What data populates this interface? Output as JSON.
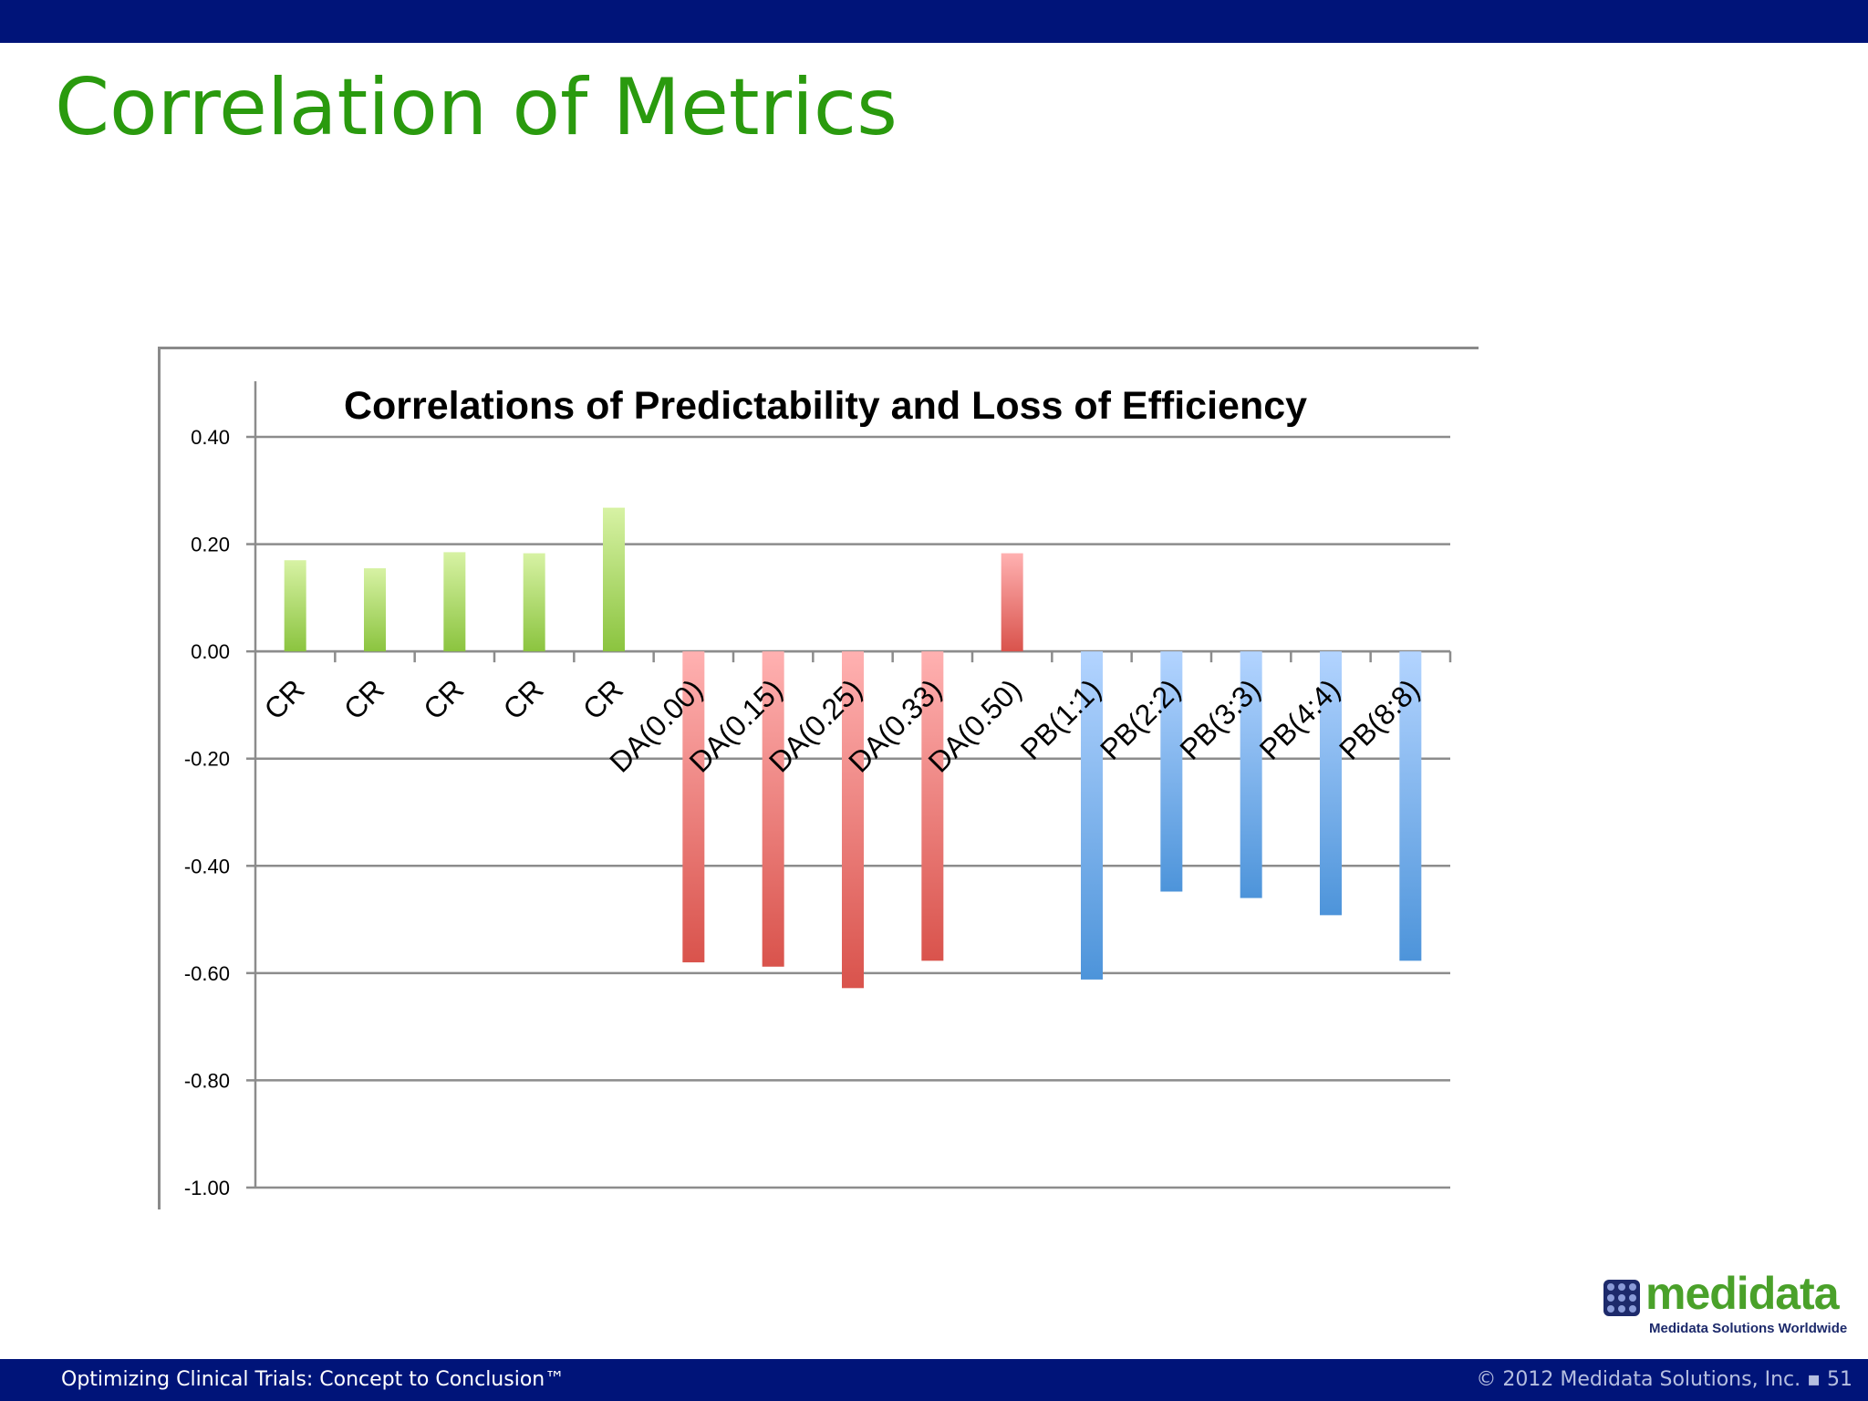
{
  "slide": {
    "title": "Correlation of Metrics"
  },
  "chart_data": {
    "type": "bar",
    "title": "Correlations of Predictability and Loss of Efficiency",
    "xlabel": "",
    "ylabel": "",
    "ylim": [
      -1.0,
      0.4
    ],
    "yticks": [
      0.4,
      0.2,
      0.0,
      -0.2,
      -0.4,
      -0.6,
      -0.8,
      -1.0
    ],
    "ytick_labels": [
      "0.40",
      "0.20",
      "0.00",
      "-0.20",
      "-0.40",
      "-0.60",
      "-0.80",
      "-1.00"
    ],
    "grid": true,
    "legend": "none",
    "categories": [
      "CR",
      "CR",
      "CR",
      "CR",
      "CR",
      "DA(0.00)",
      "DA(0.15)",
      "DA(0.25)",
      "DA(0.33)",
      "DA(0.50)",
      "PB(1:1)",
      "PB(2:2)",
      "PB(3:3)",
      "PB(4:4)",
      "PB(8:8)"
    ],
    "values": [
      0.17,
      0.155,
      0.185,
      0.183,
      0.268,
      -0.58,
      -0.588,
      -0.628,
      -0.577,
      0.183,
      -0.612,
      -0.448,
      -0.46,
      -0.492,
      -0.577
    ],
    "groups": [
      "CR",
      "CR",
      "CR",
      "CR",
      "CR",
      "DA",
      "DA",
      "DA",
      "DA",
      "DA",
      "PB",
      "PB",
      "PB",
      "PB",
      "PB"
    ],
    "colors": {
      "CR": [
        "#d7f2a4",
        "#8bc43f"
      ],
      "DA": [
        "#ffb1b1",
        "#d9534c"
      ],
      "PB": [
        "#b3d4ff",
        "#4d94da"
      ]
    }
  },
  "footer": {
    "left": "Optimizing Clinical Trials: Concept to Conclusion™",
    "right": "© 2012 Medidata Solutions, Inc. ▪ 51"
  },
  "logo": {
    "word": "medidata",
    "tagline": "Medidata Solutions Worldwide"
  }
}
